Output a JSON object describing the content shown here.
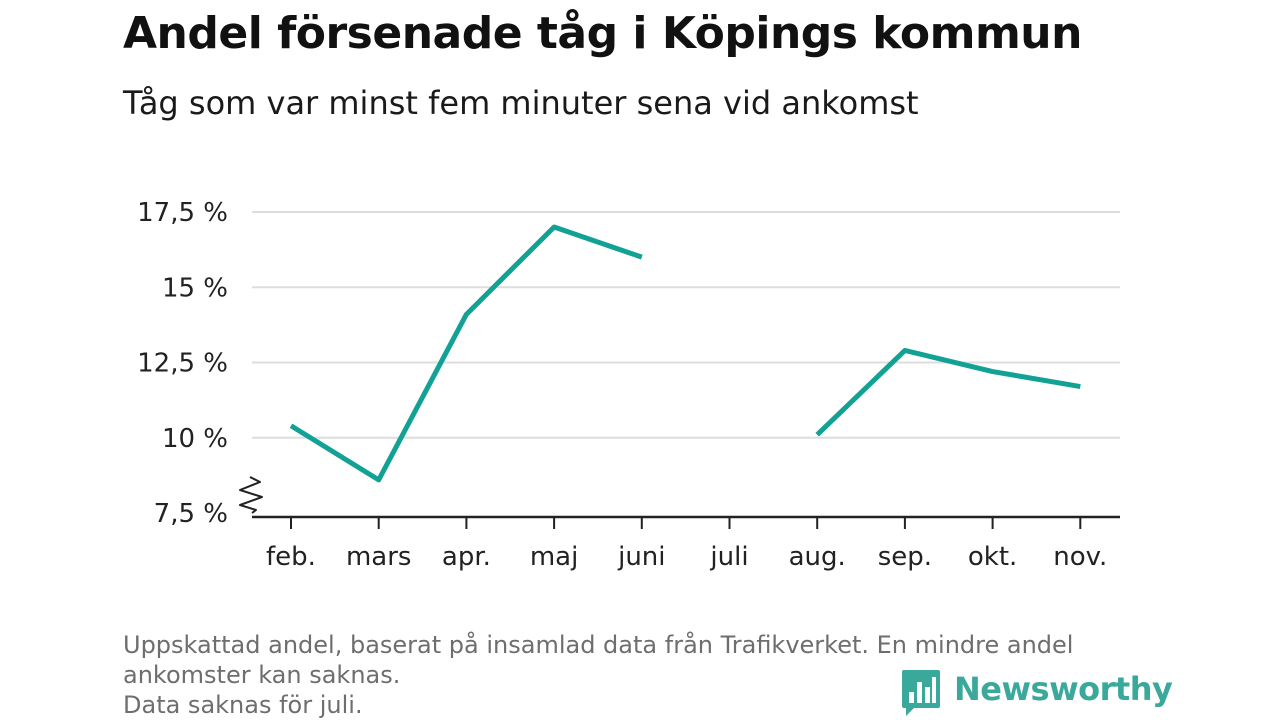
{
  "title": "Andel försenade tåg i Köpings kommun",
  "subtitle": "Tåg som var minst fem minuter sena vid ankomst",
  "footer": {
    "line1": "Uppskattad andel, baserat på insamlad data från Trafikverket. En mindre andel",
    "line2": "ankomster kan saknas.",
    "line3": "Data saknas för juli."
  },
  "brand": {
    "name": "Newsworthy",
    "logo_icon": "newsworthy-bar-chart-icon",
    "color": "#3aa89a"
  },
  "colors": {
    "line": "#12a295",
    "grid": "#dddddd",
    "axis": "#222222"
  },
  "chart_data": {
    "type": "line",
    "categories": [
      "feb.",
      "mars",
      "apr.",
      "maj",
      "juni",
      "juli",
      "aug.",
      "sep.",
      "okt.",
      "nov."
    ],
    "series": [
      {
        "values": [
          10.4,
          8.6,
          14.1,
          17.0,
          16.0,
          null,
          10.1,
          12.9,
          12.2,
          11.7
        ]
      }
    ],
    "ylim": [
      7.5,
      17.5
    ],
    "yticks": [
      7.5,
      10,
      12.5,
      15,
      17.5
    ],
    "ytick_labels": [
      "7,5 %",
      "10 %",
      "12,5 %",
      "15 %",
      "17,5 %"
    ],
    "axis_break": true,
    "grid": true,
    "xlabel": "",
    "ylabel": ""
  }
}
